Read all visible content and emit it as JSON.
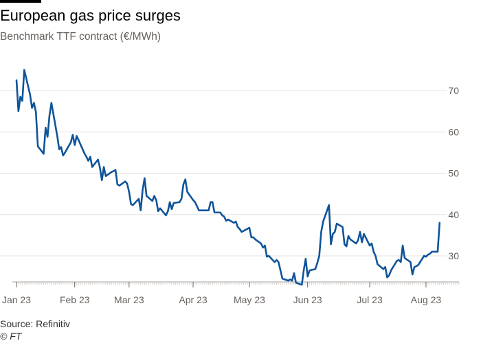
{
  "title": "European gas price surges",
  "subtitle": "Benchmark TTF contract (€/MWh)",
  "source": "Source: Refinitiv",
  "credit": "© FT",
  "colors": {
    "line": "#0f5499",
    "grid": "#e6e3df",
    "tick_text": "#66605c",
    "top_rule": "#000000"
  },
  "chart_data": {
    "type": "line",
    "title": "European gas price surges",
    "subtitle": "Benchmark TTF contract (€/MWh)",
    "xlabel": "",
    "ylabel": "",
    "ylim": [
      22,
      75
    ],
    "yticks": [
      30,
      40,
      50,
      60,
      70
    ],
    "y_axis_side": "right",
    "grid": "horizontal",
    "legend": "none",
    "x_start": "2023-01-02",
    "x_end": "2023-08-18",
    "xticks": [
      {
        "date": "2023-01-02",
        "label": "Jan 23"
      },
      {
        "date": "2023-02-01",
        "label": "Feb 23"
      },
      {
        "date": "2023-03-01",
        "label": "Mar 23"
      },
      {
        "date": "2023-04-03",
        "label": "Apr 23"
      },
      {
        "date": "2023-05-02",
        "label": "May 23"
      },
      {
        "date": "2023-06-01",
        "label": "Jun 23"
      },
      {
        "date": "2023-07-03",
        "label": "Jul 23"
      },
      {
        "date": "2023-08-01",
        "label": "Aug 23"
      }
    ],
    "series": [
      {
        "name": "",
        "points": [
          [
            "2023-01-02",
            72.5
          ],
          [
            "2023-01-03",
            65.0
          ],
          [
            "2023-01-04",
            68.5
          ],
          [
            "2023-01-05",
            67.5
          ],
          [
            "2023-01-06",
            75.0
          ],
          [
            "2023-01-09",
            69.0
          ],
          [
            "2023-01-10",
            65.8
          ],
          [
            "2023-01-11",
            67.0
          ],
          [
            "2023-01-12",
            64.8
          ],
          [
            "2023-01-13",
            56.5
          ],
          [
            "2023-01-16",
            54.7
          ],
          [
            "2023-01-17",
            61.0
          ],
          [
            "2023-01-18",
            58.8
          ],
          [
            "2023-01-19",
            64.0
          ],
          [
            "2023-01-20",
            67.0
          ],
          [
            "2023-01-23",
            59.0
          ],
          [
            "2023-01-24",
            55.8
          ],
          [
            "2023-01-25",
            56.3
          ],
          [
            "2023-01-26",
            54.3
          ],
          [
            "2023-01-27",
            55.0
          ],
          [
            "2023-01-30",
            57.5
          ],
          [
            "2023-01-31",
            59.3
          ],
          [
            "2023-02-01",
            56.8
          ],
          [
            "2023-02-02",
            59.0
          ],
          [
            "2023-02-03",
            58.0
          ],
          [
            "2023-02-06",
            54.8
          ],
          [
            "2023-02-07",
            54.0
          ],
          [
            "2023-02-08",
            53.0
          ],
          [
            "2023-02-09",
            54.0
          ],
          [
            "2023-02-10",
            51.5
          ],
          [
            "2023-02-13",
            53.3
          ],
          [
            "2023-02-14",
            51.3
          ],
          [
            "2023-02-15",
            48.3
          ],
          [
            "2023-02-16",
            51.5
          ],
          [
            "2023-02-17",
            49.3
          ],
          [
            "2023-02-20",
            50.3
          ],
          [
            "2023-02-21",
            50.5
          ],
          [
            "2023-02-22",
            50.8
          ],
          [
            "2023-02-23",
            47.3
          ],
          [
            "2023-02-24",
            47.0
          ],
          [
            "2023-02-27",
            48.0
          ],
          [
            "2023-02-28",
            47.5
          ],
          [
            "2023-03-01",
            45.5
          ],
          [
            "2023-03-02",
            42.5
          ],
          [
            "2023-03-03",
            42.3
          ],
          [
            "2023-03-06",
            43.8
          ],
          [
            "2023-03-07",
            41.0
          ],
          [
            "2023-03-08",
            46.0
          ],
          [
            "2023-03-09",
            48.8
          ],
          [
            "2023-03-10",
            44.5
          ],
          [
            "2023-03-13",
            43.3
          ],
          [
            "2023-03-14",
            44.5
          ],
          [
            "2023-03-15",
            43.5
          ],
          [
            "2023-03-16",
            40.8
          ],
          [
            "2023-03-17",
            41.5
          ],
          [
            "2023-03-20",
            39.8
          ],
          [
            "2023-03-21",
            40.8
          ],
          [
            "2023-03-22",
            43.0
          ],
          [
            "2023-03-23",
            41.3
          ],
          [
            "2023-03-24",
            42.8
          ],
          [
            "2023-03-27",
            43.0
          ],
          [
            "2023-03-28",
            43.8
          ],
          [
            "2023-03-29",
            47.3
          ],
          [
            "2023-03-30",
            48.5
          ],
          [
            "2023-03-31",
            45.5
          ],
          [
            "2023-04-03",
            43.5
          ],
          [
            "2023-04-04",
            43.0
          ],
          [
            "2023-04-05",
            42.0
          ],
          [
            "2023-04-06",
            41.0
          ],
          [
            "2023-04-11",
            41.0
          ],
          [
            "2023-04-12",
            43.0
          ],
          [
            "2023-04-13",
            43.0
          ],
          [
            "2023-04-14",
            40.5
          ],
          [
            "2023-04-17",
            40.5
          ],
          [
            "2023-04-18",
            39.8
          ],
          [
            "2023-04-19",
            39.5
          ],
          [
            "2023-04-20",
            38.5
          ],
          [
            "2023-04-21",
            38.8
          ],
          [
            "2023-04-24",
            38.0
          ],
          [
            "2023-04-25",
            38.3
          ],
          [
            "2023-04-26",
            37.0
          ],
          [
            "2023-04-27",
            36.5
          ],
          [
            "2023-04-28",
            35.8
          ],
          [
            "2023-05-02",
            36.8
          ],
          [
            "2023-05-03",
            34.5
          ],
          [
            "2023-05-04",
            34.5
          ],
          [
            "2023-05-05",
            34.0
          ],
          [
            "2023-05-08",
            33.0
          ],
          [
            "2023-05-09",
            32.0
          ],
          [
            "2023-05-10",
            32.5
          ],
          [
            "2023-05-11",
            29.8
          ],
          [
            "2023-05-12",
            30.0
          ],
          [
            "2023-05-15",
            28.5
          ],
          [
            "2023-05-16",
            29.0
          ],
          [
            "2023-05-17",
            28.5
          ],
          [
            "2023-05-18",
            26.5
          ],
          [
            "2023-05-19",
            24.5
          ],
          [
            "2023-05-22",
            24.0
          ],
          [
            "2023-05-23",
            24.3
          ],
          [
            "2023-05-24",
            24.0
          ],
          [
            "2023-05-25",
            25.8
          ],
          [
            "2023-05-26",
            23.5
          ],
          [
            "2023-05-29",
            23.0
          ],
          [
            "2023-05-30",
            26.5
          ],
          [
            "2023-05-31",
            29.3
          ],
          [
            "2023-06-01",
            25.0
          ],
          [
            "2023-06-02",
            26.5
          ],
          [
            "2023-06-05",
            26.8
          ],
          [
            "2023-06-06",
            28.3
          ],
          [
            "2023-06-07",
            30.0
          ],
          [
            "2023-06-08",
            35.8
          ],
          [
            "2023-06-09",
            38.3
          ],
          [
            "2023-06-12",
            42.3
          ],
          [
            "2023-06-13",
            32.8
          ],
          [
            "2023-06-14",
            35.3
          ],
          [
            "2023-06-15",
            35.8
          ],
          [
            "2023-06-16",
            37.8
          ],
          [
            "2023-06-19",
            37.0
          ],
          [
            "2023-06-20",
            32.8
          ],
          [
            "2023-06-21",
            32.3
          ],
          [
            "2023-06-22",
            34.8
          ],
          [
            "2023-06-23",
            34.0
          ],
          [
            "2023-06-26",
            33.0
          ],
          [
            "2023-06-27",
            33.8
          ],
          [
            "2023-06-28",
            35.8
          ],
          [
            "2023-06-29",
            33.3
          ],
          [
            "2023-06-30",
            35.3
          ],
          [
            "2023-07-03",
            32.5
          ],
          [
            "2023-07-04",
            33.0
          ],
          [
            "2023-07-05",
            31.0
          ],
          [
            "2023-07-06",
            30.0
          ],
          [
            "2023-07-07",
            28.0
          ],
          [
            "2023-07-10",
            26.8
          ],
          [
            "2023-07-11",
            27.3
          ],
          [
            "2023-07-12",
            24.8
          ],
          [
            "2023-07-13",
            25.3
          ],
          [
            "2023-07-14",
            26.5
          ],
          [
            "2023-07-17",
            28.8
          ],
          [
            "2023-07-18",
            29.0
          ],
          [
            "2023-07-19",
            28.5
          ],
          [
            "2023-07-20",
            32.5
          ],
          [
            "2023-07-21",
            29.5
          ],
          [
            "2023-07-24",
            28.5
          ],
          [
            "2023-07-25",
            25.5
          ],
          [
            "2023-07-26",
            27.3
          ],
          [
            "2023-07-27",
            27.5
          ],
          [
            "2023-07-28",
            27.8
          ],
          [
            "2023-07-31",
            30.0
          ],
          [
            "2023-08-01",
            29.8
          ],
          [
            "2023-08-02",
            30.3
          ],
          [
            "2023-08-03",
            30.5
          ],
          [
            "2023-08-04",
            31.0
          ],
          [
            "2023-08-07",
            31.0
          ],
          [
            "2023-08-08",
            38.0
          ]
        ]
      }
    ]
  }
}
